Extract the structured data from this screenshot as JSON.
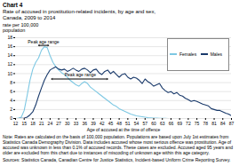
{
  "chart_data": {
    "type": "line",
    "title": "Chart 4",
    "subtitle": [
      "Rate of accused in prostitution-related incidents, by age and sex,",
      "Canada, 2009 to 2014"
    ],
    "ylabel": [
      "rate per 100,000",
      "population"
    ],
    "xlabel": "Age of accused at the time of offence",
    "x": [
      12,
      13,
      14,
      15,
      16,
      17,
      18,
      19,
      20,
      21,
      22,
      23,
      24,
      25,
      26,
      27,
      28,
      29,
      30,
      31,
      32,
      33,
      34,
      35,
      36,
      37,
      38,
      39,
      40,
      41,
      42,
      43,
      44,
      45,
      46,
      47,
      48,
      49,
      50,
      51,
      52,
      53,
      54,
      55,
      56,
      57,
      58,
      59,
      60,
      61,
      62,
      63,
      64,
      65,
      66,
      67,
      68,
      69,
      70,
      71,
      72,
      73,
      74,
      75,
      76,
      77,
      78,
      79,
      80,
      81,
      82,
      83,
      84,
      85,
      86,
      87
    ],
    "series": [
      {
        "name": "Females",
        "color": "#7ec8e3",
        "values": [
          0.0,
          0.1,
          0.3,
          1.8,
          5.0,
          8.5,
          11.0,
          12.5,
          13.5,
          15.2,
          16.0,
          15.8,
          14.0,
          12.5,
          11.5,
          10.8,
          10.2,
          9.8,
          9.2,
          8.5,
          8.0,
          7.5,
          7.2,
          7.8,
          8.2,
          7.8,
          7.0,
          6.5,
          6.0,
          5.5,
          5.0,
          4.5,
          4.0,
          3.5,
          3.0,
          2.7,
          2.2,
          1.9,
          1.6,
          1.3,
          1.0,
          0.8,
          0.6,
          0.5,
          0.4,
          0.3,
          0.2,
          0.15,
          0.1,
          0.1,
          0.05,
          0.05,
          0.05,
          0.0,
          0.0,
          0.0,
          0.0,
          0.0,
          0.0,
          0.0,
          0.0,
          0.0,
          0.0,
          0.0,
          0.0,
          0.0,
          0.0,
          0.0,
          0.0,
          0.0,
          0.0,
          0.0,
          0.0,
          0.0,
          0.0,
          0.0
        ]
      },
      {
        "name": "Males",
        "color": "#1a3a6b",
        "values": [
          0.0,
          0.0,
          0.05,
          0.1,
          0.3,
          0.8,
          1.5,
          3.0,
          5.0,
          6.8,
          8.5,
          9.8,
          10.8,
          11.2,
          11.5,
          11.0,
          10.8,
          11.0,
          10.5,
          10.8,
          11.2,
          10.8,
          10.5,
          11.0,
          11.2,
          10.8,
          10.2,
          10.8,
          11.0,
          10.2,
          9.8,
          10.5,
          10.8,
          10.0,
          10.5,
          9.8,
          9.2,
          9.8,
          10.0,
          9.2,
          8.8,
          9.2,
          9.0,
          8.5,
          7.8,
          8.8,
          8.2,
          7.8,
          7.2,
          7.5,
          7.8,
          6.8,
          6.2,
          5.8,
          6.0,
          5.5,
          5.8,
          5.2,
          5.0,
          4.5,
          4.2,
          3.8,
          4.0,
          3.8,
          3.5,
          3.2,
          3.0,
          2.8,
          2.2,
          2.0,
          1.8,
          1.8,
          1.5,
          1.2,
          1.0,
          0.6
        ]
      }
    ],
    "xlim": [
      12,
      87
    ],
    "ylim": [
      0,
      18
    ],
    "xticks": [
      12,
      15,
      18,
      21,
      24,
      27,
      30,
      33,
      36,
      39,
      42,
      45,
      48,
      51,
      54,
      57,
      60,
      63,
      66,
      69,
      72,
      75,
      78,
      81,
      84,
      87
    ],
    "yticks": [
      0,
      2,
      4,
      6,
      8,
      10,
      12,
      14,
      16,
      18
    ],
    "grid": true,
    "legend": "upper right",
    "annotations": [
      {
        "text": "Peak age range",
        "x": 21.7,
        "y": 16.8,
        "arrow_x": [
          20.0,
          23.5
        ],
        "arrow_y": 16.3
      },
      {
        "text": "Peak age range",
        "x": 34.5,
        "y": 9.3,
        "arrow_x": [
          24.5,
          44.0
        ],
        "arrow_y": 8.8
      }
    ],
    "note": "Note: Rates are calculated on the basis of 100,000 population. Populations are based upon July 1st estimates from Statistics Canada Demography Division. Data includes accused whose most serious offence was prostitution. Age of accused was unknown in less than 0.1% of accused records. These cases are excluded. Accused aged 95 years and older are excluded from this chart due to instances of miscoding of unknown age within this age category.",
    "source": "Sources: Statistics Canada, Canadian Centre for Justice Statistics, Incident-based Uniform Crime Reporting Survey."
  }
}
